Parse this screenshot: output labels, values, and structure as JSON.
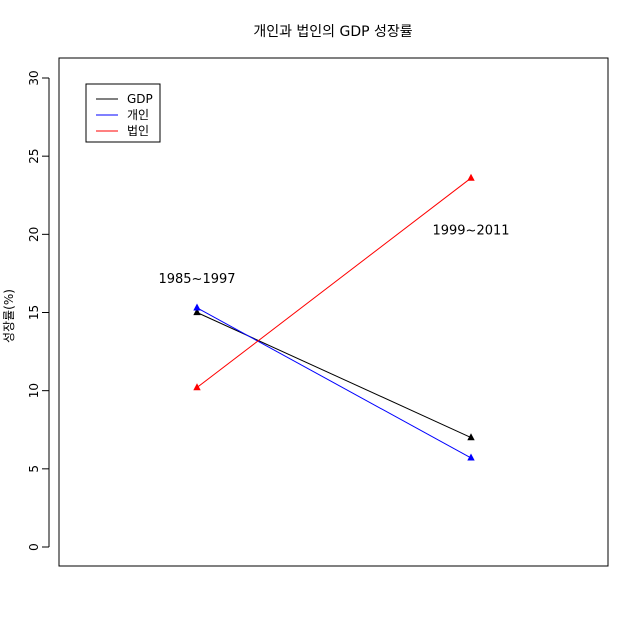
{
  "chart_data": {
    "type": "line",
    "title": "개인과 법인의 GDP 성장률",
    "xlabel": "",
    "ylabel": "성장률(%)",
    "ylim": [
      0,
      30
    ],
    "yticks": [
      0,
      5,
      10,
      15,
      20,
      25,
      30
    ],
    "x": [
      "1985~1997",
      "1999~2011"
    ],
    "series": [
      {
        "name": "GDP",
        "color": "#000000",
        "values": [
          15.0,
          7.0
        ]
      },
      {
        "name": "개인",
        "color": "#0000FF",
        "values": [
          15.3,
          5.7
        ]
      },
      {
        "name": "법인",
        "color": "#FF0000",
        "values": [
          10.2,
          23.6
        ]
      }
    ],
    "annotations": [
      {
        "text": "1985~1997",
        "x_index": 0,
        "y": 16.9
      },
      {
        "text": "1999~2011",
        "x_index": 1,
        "y": 20.0
      }
    ],
    "marker": "filled-triangle",
    "legend_position": "top-left",
    "grid": false
  }
}
